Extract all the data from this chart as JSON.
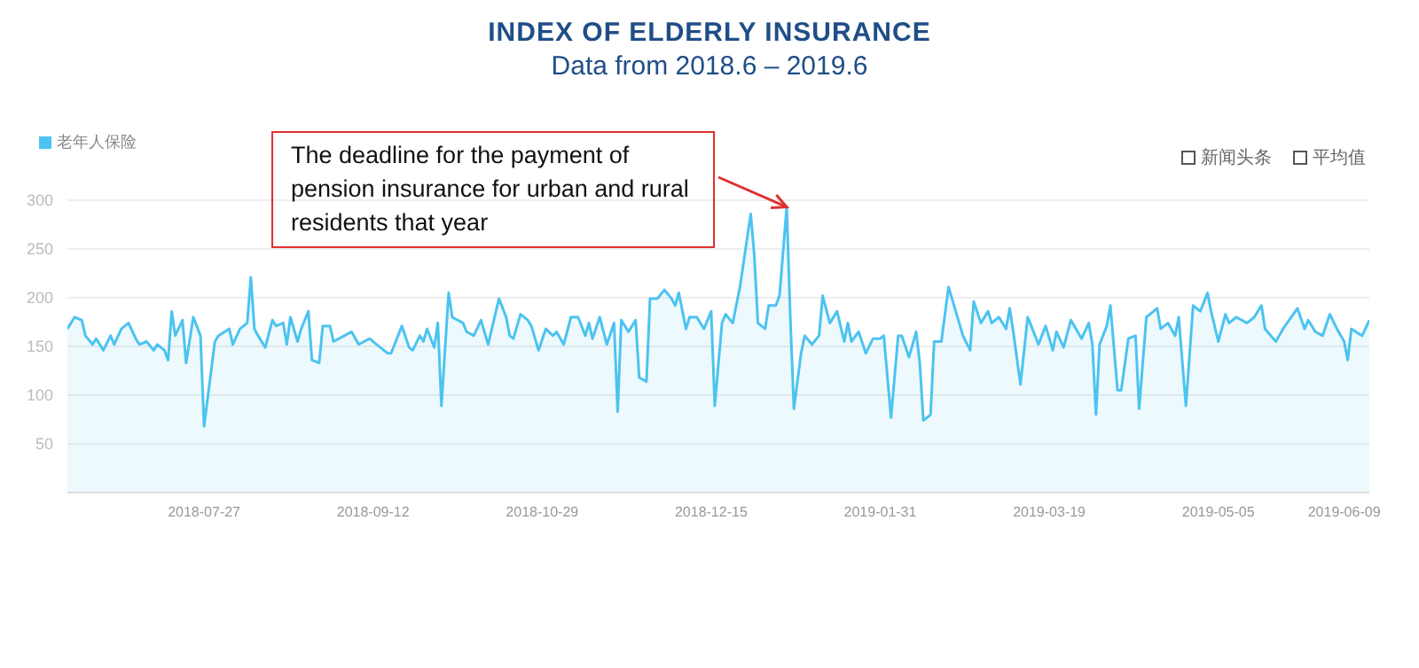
{
  "chart_data": {
    "type": "area",
    "title": "INDEX OF ELDERLY INSURANCE",
    "subtitle": "Data from 2018.6 – 2019.6",
    "x": [
      "2018-06-19",
      "2018-06-21",
      "2018-06-23",
      "2018-06-24",
      "2018-06-26",
      "2018-06-27",
      "2018-06-29",
      "2018-07-01",
      "2018-07-02",
      "2018-07-04",
      "2018-07-06",
      "2018-07-08",
      "2018-07-09",
      "2018-07-11",
      "2018-07-13",
      "2018-07-14",
      "2018-07-16",
      "2018-07-17",
      "2018-07-18",
      "2018-07-19",
      "2018-07-21",
      "2018-07-22",
      "2018-07-24",
      "2018-07-26",
      "2018-07-27",
      "2018-07-30",
      "2018-07-31",
      "2018-08-03",
      "2018-08-04",
      "2018-08-06",
      "2018-08-08",
      "2018-08-09",
      "2018-08-10",
      "2018-08-11",
      "2018-08-13",
      "2018-08-15",
      "2018-08-16",
      "2018-08-18",
      "2018-08-19",
      "2018-08-20",
      "2018-08-22",
      "2018-08-23",
      "2018-08-25",
      "2018-08-26",
      "2018-08-28",
      "2018-08-29",
      "2018-08-31",
      "2018-09-01",
      "2018-09-04",
      "2018-09-06",
      "2018-09-08",
      "2018-09-11",
      "2018-09-13",
      "2018-09-16",
      "2018-09-17",
      "2018-09-20",
      "2018-09-22",
      "2018-09-23",
      "2018-09-25",
      "2018-09-26",
      "2018-09-27",
      "2018-09-29",
      "2018-09-30",
      "2018-10-01",
      "2018-10-03",
      "2018-10-04",
      "2018-10-07",
      "2018-10-08",
      "2018-10-10",
      "2018-10-12",
      "2018-10-14",
      "2018-10-15",
      "2018-10-17",
      "2018-10-19",
      "2018-10-20",
      "2018-10-21",
      "2018-10-23",
      "2018-10-25",
      "2018-10-26",
      "2018-10-28",
      "2018-10-30",
      "2018-11-01",
      "2018-11-02",
      "2018-11-04",
      "2018-11-06",
      "2018-11-08",
      "2018-11-10",
      "2018-11-11",
      "2018-11-12",
      "2018-11-14",
      "2018-11-16",
      "2018-11-18",
      "2018-11-19",
      "2018-11-20",
      "2018-11-22",
      "2018-11-24",
      "2018-11-25",
      "2018-11-27",
      "2018-11-28",
      "2018-11-30",
      "2018-12-02",
      "2018-12-04",
      "2018-12-05",
      "2018-12-06",
      "2018-12-08",
      "2018-12-09",
      "2018-12-11",
      "2018-12-13",
      "2018-12-15",
      "2018-12-16",
      "2018-12-18",
      "2018-12-19",
      "2018-12-21",
      "2018-12-23",
      "2018-12-25",
      "2018-12-26",
      "2018-12-27",
      "2018-12-28",
      "2018-12-30",
      "2018-12-31",
      "2019-01-02",
      "2019-01-03",
      "2019-01-05",
      "2019-01-06",
      "2019-01-07",
      "2019-01-09",
      "2019-01-10",
      "2019-01-12",
      "2019-01-14",
      "2019-01-15",
      "2019-01-17",
      "2019-01-19",
      "2019-01-21",
      "2019-01-22",
      "2019-01-23",
      "2019-01-25",
      "2019-01-27",
      "2019-01-29",
      "2019-01-31",
      "2019-02-01",
      "2019-02-03",
      "2019-02-05",
      "2019-02-06",
      "2019-02-08",
      "2019-02-10",
      "2019-02-11",
      "2019-02-12",
      "2019-02-14",
      "2019-02-15",
      "2019-02-17",
      "2019-02-19",
      "2019-02-21",
      "2019-02-23",
      "2019-02-25",
      "2019-02-26",
      "2019-02-28",
      "2019-03-02",
      "2019-03-03",
      "2019-03-05",
      "2019-03-07",
      "2019-03-08",
      "2019-03-09",
      "2019-03-11",
      "2019-03-13",
      "2019-03-14",
      "2019-03-16",
      "2019-03-18",
      "2019-03-20",
      "2019-03-21",
      "2019-03-23",
      "2019-03-25",
      "2019-03-28",
      "2019-03-30",
      "2019-03-31",
      "2019-04-01",
      "2019-04-02",
      "2019-04-04",
      "2019-04-05",
      "2019-04-07",
      "2019-04-08",
      "2019-04-10",
      "2019-04-12",
      "2019-04-13",
      "2019-04-15",
      "2019-04-18",
      "2019-04-19",
      "2019-04-21",
      "2019-04-23",
      "2019-04-24",
      "2019-04-26",
      "2019-04-28",
      "2019-04-30",
      "2019-05-02",
      "2019-05-03",
      "2019-05-05",
      "2019-05-07",
      "2019-05-08",
      "2019-05-10",
      "2019-05-13",
      "2019-05-15",
      "2019-05-17",
      "2019-05-18",
      "2019-05-21",
      "2019-05-23",
      "2019-05-27",
      "2019-05-29",
      "2019-05-30",
      "2019-06-01",
      "2019-06-03",
      "2019-06-05",
      "2019-06-07",
      "2019-06-09",
      "2019-06-10",
      "2019-06-11",
      "2019-06-14",
      "2019-06-16"
    ],
    "series": [
      {
        "name": "老年人保险",
        "color": "#4cc3f0",
        "values": [
          168,
          180,
          177,
          161,
          152,
          158,
          146,
          161,
          152,
          168,
          174,
          158,
          152,
          155,
          146,
          152,
          146,
          136,
          186,
          161,
          177,
          133,
          180,
          161,
          68,
          155,
          161,
          168,
          152,
          168,
          174,
          221,
          168,
          161,
          149,
          177,
          171,
          174,
          152,
          180,
          155,
          168,
          186,
          136,
          133,
          171,
          171,
          155,
          161,
          165,
          152,
          158,
          152,
          143,
          143,
          171,
          149,
          146,
          161,
          155,
          168,
          149,
          174,
          89,
          205,
          180,
          174,
          165,
          161,
          177,
          152,
          168,
          199,
          180,
          161,
          158,
          183,
          177,
          171,
          146,
          168,
          161,
          165,
          152,
          180,
          180,
          161,
          174,
          158,
          180,
          152,
          174,
          83,
          177,
          165,
          177,
          118,
          114,
          199,
          199,
          208,
          199,
          192,
          205,
          168,
          180,
          180,
          168,
          186,
          89,
          174,
          183,
          174,
          211,
          261,
          286,
          243,
          174,
          168,
          192,
          192,
          202,
          293,
          180,
          86,
          143,
          161,
          152,
          161,
          202,
          174,
          186,
          155,
          174,
          155,
          165,
          143,
          158,
          158,
          161,
          77,
          161,
          161,
          139,
          165,
          133,
          74,
          80,
          155,
          155,
          211,
          186,
          161,
          146,
          196,
          174,
          186,
          174,
          180,
          168,
          189,
          165,
          111,
          180,
          171,
          152,
          171,
          146,
          165,
          149,
          177,
          158,
          174,
          152,
          80,
          152,
          171,
          192,
          105,
          105,
          158,
          161,
          86,
          180,
          189,
          168,
          174,
          161,
          180,
          89,
          192,
          186,
          205,
          186,
          155,
          183,
          174,
          180,
          174,
          180,
          192,
          168,
          155,
          168,
          189,
          168,
          177,
          165,
          161,
          183,
          168,
          155,
          136,
          168,
          161,
          177
        ]
      }
    ],
    "xlim": [
      "2018-06-19",
      "2019-06-16"
    ],
    "xticks": [
      "2018-07-27",
      "2018-09-12",
      "2018-10-29",
      "2018-12-15",
      "2019-01-31",
      "2019-03-19",
      "2019-05-05",
      "2019-06-09"
    ],
    "ylim": [
      0,
      300
    ],
    "yticks": [
      50,
      100,
      150,
      200,
      250,
      300
    ],
    "grid": "y",
    "legend": "top left",
    "marker": "none",
    "annotations": [
      {
        "text": "The deadline for the payment of pension insurance for urban and rural residents that year",
        "x": "2019-01-05",
        "y": 293
      },
      "新闻头条",
      "平均值"
    ]
  }
}
